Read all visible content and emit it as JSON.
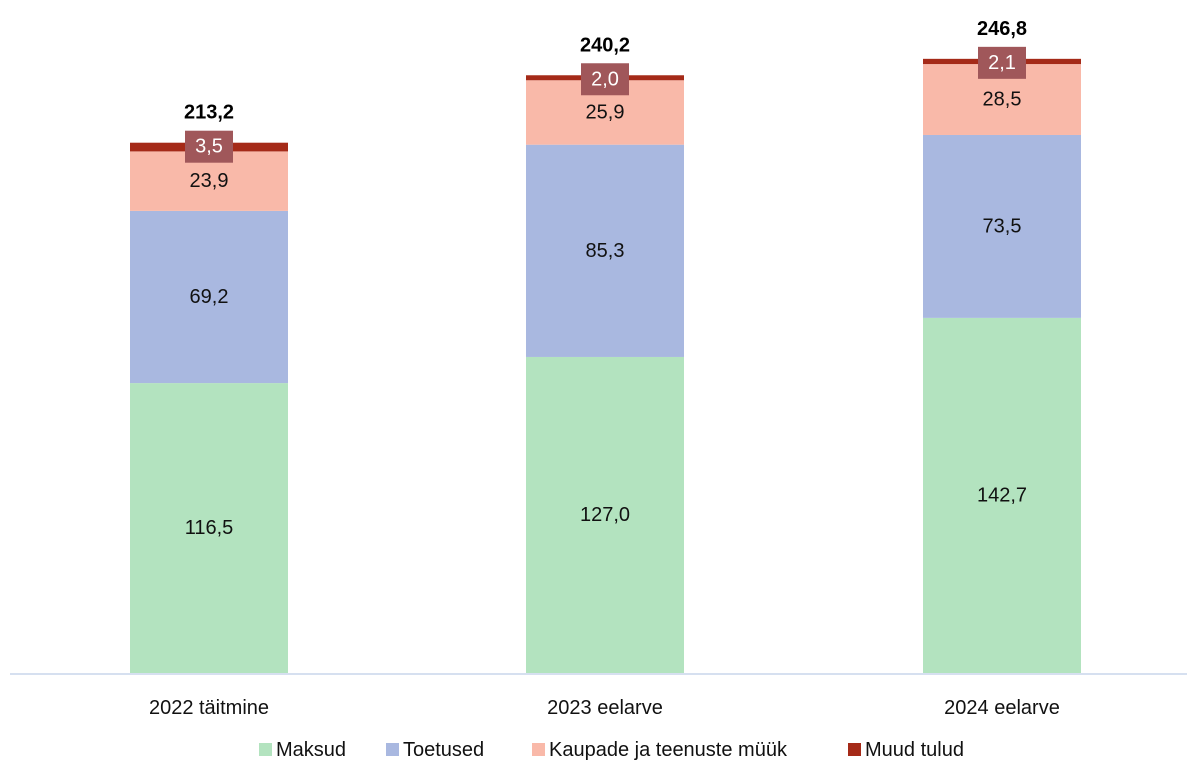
{
  "chart_data": {
    "type": "bar",
    "stacked": true,
    "categories": [
      "2022 täitmine",
      "2023 eelarve",
      "2024 eelarve"
    ],
    "series": [
      {
        "name": "Maksud",
        "color": "#b3e3bf",
        "values": [
          116.5,
          127.0,
          142.7
        ],
        "labels": [
          "116,5",
          "127,0",
          "142,7"
        ]
      },
      {
        "name": "Toetused",
        "color": "#a9b8e0",
        "values": [
          69.2,
          85.3,
          73.5
        ],
        "labels": [
          "69,2",
          "85,3",
          "73,5"
        ]
      },
      {
        "name": "Kaupade ja teenuste müük",
        "color": "#f9b9a9",
        "values": [
          23.9,
          25.9,
          28.5
        ],
        "labels": [
          "23,9",
          "25,9",
          "28,5"
        ]
      },
      {
        "name": "Muud tulud",
        "color": "#a52a18",
        "values": [
          3.5,
          2.0,
          2.1
        ],
        "labels": [
          "3,5",
          "2,0",
          "2,1"
        ]
      }
    ],
    "totals": [
      213.2,
      240.2,
      246.8
    ],
    "total_labels": [
      "213,2",
      "240,2",
      "246,8"
    ],
    "axis_color": "#d6e0f0",
    "small_label_box_color": "#a0575a",
    "legend_position": "bottom",
    "grid": false
  }
}
